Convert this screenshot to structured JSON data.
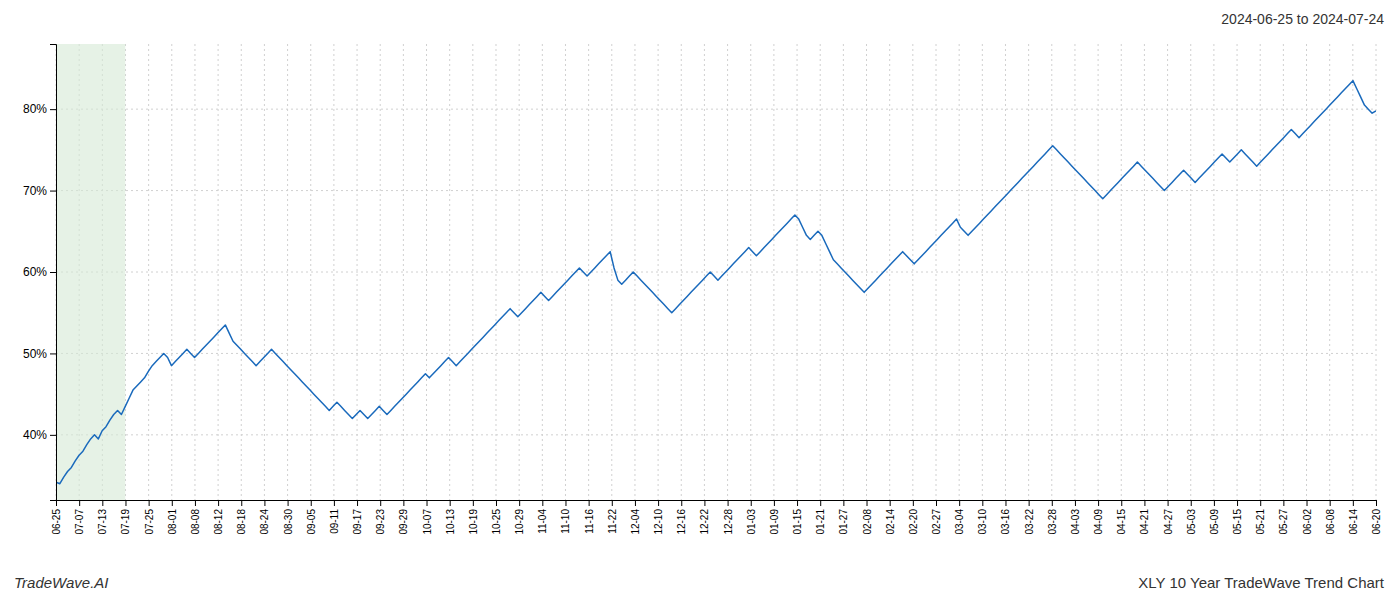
{
  "chart_data": {
    "type": "line",
    "title": "2024-06-25 to 2024-07-24",
    "annotations": [
      "TradeWave.AI",
      "XLY 10 Year TradeWave Trend Chart"
    ],
    "color": "#1a6abc",
    "grid": true,
    "highlight": {
      "start": 0,
      "end": 18,
      "color": "#d6ead6"
    },
    "xlim": [
      0,
      343
    ],
    "xticks": [
      {
        "value": 0,
        "label": "06-25"
      },
      {
        "value": 6.0175,
        "label": "07-07"
      },
      {
        "value": 12.0351,
        "label": "07-13"
      },
      {
        "value": 18.0526,
        "label": "07-19"
      },
      {
        "value": 24.0702,
        "label": "07-25"
      },
      {
        "value": 30.0877,
        "label": "08-01"
      },
      {
        "value": 36.1053,
        "label": "08-08"
      },
      {
        "value": 42.1228,
        "label": "08-12"
      },
      {
        "value": 48.1404,
        "label": "08-18"
      },
      {
        "value": 54.1579,
        "label": "08-24"
      },
      {
        "value": 60.1754,
        "label": "08-30"
      },
      {
        "value": 66.193,
        "label": "09-05"
      },
      {
        "value": 72.2105,
        "label": "09-11"
      },
      {
        "value": 78.2281,
        "label": "09-17"
      },
      {
        "value": 84.2456,
        "label": "09-23"
      },
      {
        "value": 90.2632,
        "label": "09-29"
      },
      {
        "value": 96.2807,
        "label": "10-07"
      },
      {
        "value": 102.2982,
        "label": "10-13"
      },
      {
        "value": 108.3158,
        "label": "10-19"
      },
      {
        "value": 114.3333,
        "label": "10-25"
      },
      {
        "value": 120.3509,
        "label": "10-29"
      },
      {
        "value": 126.3684,
        "label": "11-04"
      },
      {
        "value": 132.386,
        "label": "11-10"
      },
      {
        "value": 138.4035,
        "label": "11-16"
      },
      {
        "value": 144.4211,
        "label": "11-22"
      },
      {
        "value": 150.4386,
        "label": "12-04"
      },
      {
        "value": 156.4561,
        "label": "12-10"
      },
      {
        "value": 162.4737,
        "label": "12-16"
      },
      {
        "value": 168.4912,
        "label": "12-22"
      },
      {
        "value": 174.5088,
        "label": "12-28"
      },
      {
        "value": 180.5263,
        "label": "01-03"
      },
      {
        "value": 186.5439,
        "label": "01-09"
      },
      {
        "value": 192.5614,
        "label": "01-15"
      },
      {
        "value": 198.5789,
        "label": "01-21"
      },
      {
        "value": 204.5965,
        "label": "01-27"
      },
      {
        "value": 210.614,
        "label": "02-08"
      },
      {
        "value": 216.6316,
        "label": "02-14"
      },
      {
        "value": 222.6491,
        "label": "02-20"
      },
      {
        "value": 228.6667,
        "label": "02-27"
      },
      {
        "value": 234.6842,
        "label": "03-04"
      },
      {
        "value": 240.7018,
        "label": "03-10"
      },
      {
        "value": 246.7193,
        "label": "03-16"
      },
      {
        "value": 252.7368,
        "label": "03-22"
      },
      {
        "value": 258.7544,
        "label": "03-28"
      },
      {
        "value": 264.7719,
        "label": "04-03"
      },
      {
        "value": 270.7895,
        "label": "04-09"
      },
      {
        "value": 276.807,
        "label": "04-15"
      },
      {
        "value": 282.8246,
        "label": "04-21"
      },
      {
        "value": 288.8421,
        "label": "04-27"
      },
      {
        "value": 294.8596,
        "label": "05-03"
      },
      {
        "value": 300.8772,
        "label": "05-09"
      },
      {
        "value": 306.8947,
        "label": "05-15"
      },
      {
        "value": 312.9123,
        "label": "05-21"
      },
      {
        "value": 318.9298,
        "label": "05-27"
      },
      {
        "value": 324.9474,
        "label": "06-02"
      },
      {
        "value": 330.9649,
        "label": "06-08"
      },
      {
        "value": 336.9825,
        "label": "06-14"
      },
      {
        "value": 343,
        "label": "06-20"
      }
    ],
    "ylim": [
      32,
      88
    ],
    "yticks": [
      {
        "value": 40,
        "label": "40%"
      },
      {
        "value": 50,
        "label": "50%"
      },
      {
        "value": 60,
        "label": "60%"
      },
      {
        "value": 70,
        "label": "70%"
      },
      {
        "value": 80,
        "label": "80%"
      }
    ],
    "values": [
      34.2,
      34.0,
      34.8,
      35.5,
      36.0,
      36.8,
      37.5,
      38.0,
      38.8,
      39.5,
      40.0,
      39.5,
      40.5,
      41.0,
      41.8,
      42.5,
      43.0,
      42.5,
      43.5,
      44.5,
      45.5,
      46.0,
      46.5,
      47.0,
      47.8,
      48.5,
      49.0,
      49.5,
      50.0,
      49.5,
      48.5,
      49.0,
      49.5,
      50.0,
      50.5,
      50.0,
      49.5,
      50.0,
      50.5,
      51.0,
      51.5,
      52.0,
      52.5,
      53.0,
      53.5,
      52.5,
      51.5,
      51.0,
      50.5,
      50.0,
      49.5,
      49.0,
      48.5,
      49.0,
      49.5,
      50.0,
      50.5,
      50.0,
      49.5,
      49.0,
      48.5,
      48.0,
      47.5,
      47.0,
      46.5,
      46.0,
      45.5,
      45.0,
      44.5,
      44.0,
      43.5,
      43.0,
      43.5,
      44.0,
      43.5,
      43.0,
      42.5,
      42.0,
      42.5,
      43.0,
      42.5,
      42.0,
      42.5,
      43.0,
      43.5,
      43.0,
      42.5,
      43.0,
      43.5,
      44.0,
      44.5,
      45.0,
      45.5,
      46.0,
      46.5,
      47.0,
      47.5,
      47.0,
      47.5,
      48.0,
      48.5,
      49.0,
      49.5,
      49.0,
      48.5,
      49.0,
      49.5,
      50.0,
      50.5,
      51.0,
      51.5,
      52.0,
      52.5,
      53.0,
      53.5,
      54.0,
      54.5,
      55.0,
      55.5,
      55.0,
      54.5,
      55.0,
      55.5,
      56.0,
      56.5,
      57.0,
      57.5,
      57.0,
      56.5,
      57.0,
      57.5,
      58.0,
      58.5,
      59.0,
      59.5,
      60.0,
      60.5,
      60.0,
      59.5,
      60.0,
      60.5,
      61.0,
      61.5,
      62.0,
      62.5,
      60.5,
      59.0,
      58.5,
      59.0,
      59.5,
      60.0,
      59.5,
      59.0,
      58.5,
      58.0,
      57.5,
      57.0,
      56.5,
      56.0,
      55.5,
      55.0,
      55.5,
      56.0,
      56.5,
      57.0,
      57.5,
      58.0,
      58.5,
      59.0,
      59.5,
      60.0,
      59.5,
      59.0,
      59.5,
      60.0,
      60.5,
      61.0,
      61.5,
      62.0,
      62.5,
      63.0,
      62.5,
      62.0,
      62.5,
      63.0,
      63.5,
      64.0,
      64.5,
      65.0,
      65.5,
      66.0,
      66.5,
      67.0,
      66.5,
      65.5,
      64.5,
      64.0,
      64.5,
      65.0,
      64.5,
      63.5,
      62.5,
      61.5,
      61.0,
      60.5,
      60.0,
      59.5,
      59.0,
      58.5,
      58.0,
      57.5,
      58.0,
      58.5,
      59.0,
      59.5,
      60.0,
      60.5,
      61.0,
      61.5,
      62.0,
      62.5,
      62.0,
      61.5,
      61.0,
      61.5,
      62.0,
      62.5,
      63.0,
      63.5,
      64.0,
      64.5,
      65.0,
      65.5,
      66.0,
      66.5,
      65.5,
      65.0,
      64.5,
      65.0,
      65.5,
      66.0,
      66.5,
      67.0,
      67.5,
      68.0,
      68.5,
      69.0,
      69.5,
      70.0,
      70.5,
      71.0,
      71.5,
      72.0,
      72.5,
      73.0,
      73.5,
      74.0,
      74.5,
      75.0,
      75.5,
      75.0,
      74.5,
      74.0,
      73.5,
      73.0,
      72.5,
      72.0,
      71.5,
      71.0,
      70.5,
      70.0,
      69.5,
      69.0,
      69.5,
      70.0,
      70.5,
      71.0,
      71.5,
      72.0,
      72.5,
      73.0,
      73.5,
      73.0,
      72.5,
      72.0,
      71.5,
      71.0,
      70.5,
      70.0,
      70.5,
      71.0,
      71.5,
      72.0,
      72.5,
      72.0,
      71.5,
      71.0,
      71.5,
      72.0,
      72.5,
      73.0,
      73.5,
      74.0,
      74.5,
      74.0,
      73.5,
      74.0,
      74.5,
      75.0,
      74.5,
      74.0,
      73.5,
      73.0,
      73.5,
      74.0,
      74.5,
      75.0,
      75.5,
      76.0,
      76.5,
      77.0,
      77.5,
      77.0,
      76.5,
      77.0,
      77.5,
      78.0,
      78.5,
      79.0,
      79.5,
      80.0,
      80.5,
      81.0,
      81.5,
      82.0,
      82.5,
      83.0,
      83.5,
      82.5,
      81.5,
      80.5,
      80.0,
      79.5,
      79.8
    ]
  }
}
